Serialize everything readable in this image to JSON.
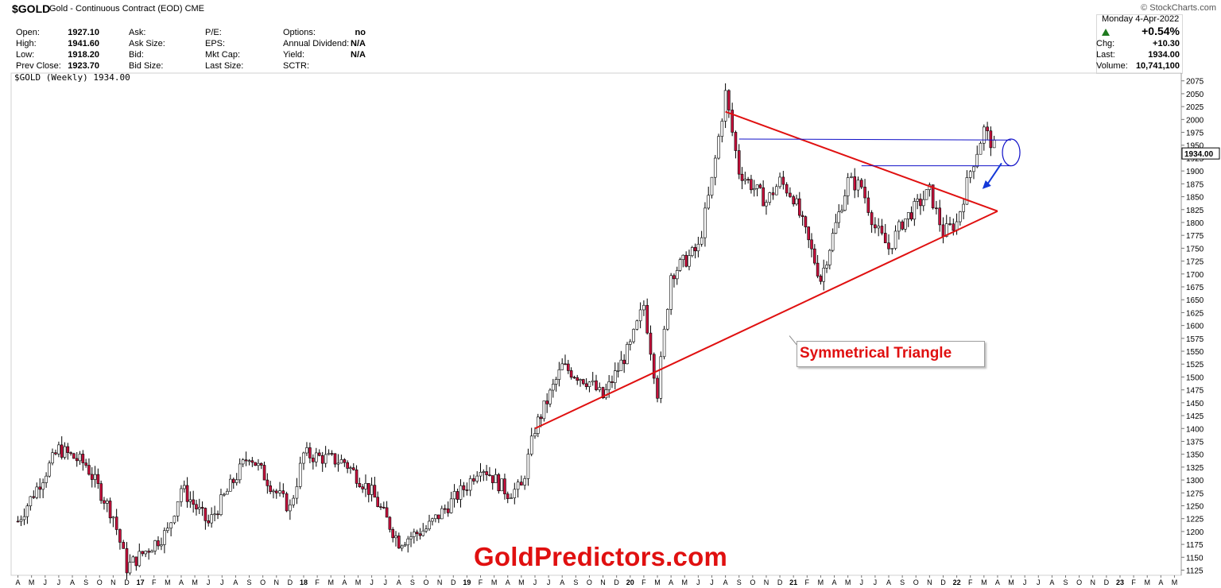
{
  "header": {
    "symbol": "$GOLD",
    "name": "Gold - Continuous Contract (EOD)",
    "exchange": "CME",
    "brand": "© StockCharts.com"
  },
  "quote_left": [
    {
      "label": "Open:",
      "value": "1927.10"
    },
    {
      "label": "High:",
      "value": "1941.60"
    },
    {
      "label": "Low:",
      "value": "1918.20"
    },
    {
      "label": "Prev Close:",
      "value": "1923.70"
    }
  ],
  "quote_mid1": [
    "Ask:",
    "Ask Size:",
    "Bid:",
    "Bid Size:"
  ],
  "quote_mid2": [
    "P/E:",
    "EPS:",
    "Mkt Cap:",
    "Last Size:"
  ],
  "quote_mid3": [
    {
      "label": "Options:",
      "value": "no"
    },
    {
      "label": "Annual Dividend:",
      "value": "N/A"
    },
    {
      "label": "Yield:",
      "value": "N/A"
    },
    {
      "label": "SCTR:",
      "value": ""
    }
  ],
  "right_panel": {
    "date": "Monday   4-Apr-2022",
    "pct": "+0.54%",
    "rows": [
      {
        "label": "Chg:",
        "value": "+10.30"
      },
      {
        "label": "Last:",
        "value": "1934.00"
      },
      {
        "label": "Volume:",
        "value": "10,741,100"
      }
    ]
  },
  "series_label": "$GOLD (Weekly) 1934.00",
  "last_price_tag": "1934.00",
  "callout": "Symmetrical Triangle",
  "watermark": "GoldPredictors.com",
  "colors": {
    "up": "#ffffff",
    "down": "#c8103c",
    "trend": "#e01010",
    "resistance": "#1010c8",
    "arrow": "#1438d8"
  },
  "chart_data": {
    "type": "candlestick",
    "title": "$GOLD (Weekly) 1934.00",
    "ylim": [
      1115,
      2090
    ],
    "y_ticks": [
      1125,
      1150,
      1175,
      1200,
      1225,
      1250,
      1275,
      1300,
      1325,
      1350,
      1375,
      1400,
      1425,
      1450,
      1475,
      1500,
      1525,
      1550,
      1575,
      1600,
      1625,
      1650,
      1675,
      1700,
      1725,
      1750,
      1775,
      1800,
      1825,
      1850,
      1875,
      1900,
      1925,
      1950,
      1975,
      2000,
      2025,
      2050,
      2075
    ],
    "x_labels": [
      "A",
      "M",
      "J",
      "J",
      "A",
      "S",
      "O",
      "N",
      "D",
      "17",
      "F",
      "M",
      "A",
      "M",
      "J",
      "J",
      "A",
      "S",
      "O",
      "N",
      "D",
      "18",
      "F",
      "M",
      "A",
      "M",
      "J",
      "J",
      "A",
      "S",
      "O",
      "N",
      "D",
      "19",
      "F",
      "M",
      "A",
      "M",
      "J",
      "J",
      "A",
      "S",
      "O",
      "N",
      "D",
      "20",
      "F",
      "M",
      "A",
      "M",
      "J",
      "J",
      "A",
      "S",
      "O",
      "N",
      "D",
      "21",
      "F",
      "M",
      "A",
      "M",
      "J",
      "J",
      "A",
      "S",
      "O",
      "N",
      "D",
      "22",
      "F",
      "M",
      "A",
      "M",
      "J",
      "J",
      "A",
      "S",
      "O",
      "N",
      "D",
      "23",
      "F",
      "M",
      "A",
      "M"
    ],
    "price_path": [
      [
        "2016-04",
        1220
      ],
      [
        "2016-07",
        1360
      ],
      [
        "2016-09",
        1330
      ],
      [
        "2016-11",
        1230
      ],
      [
        "2016-12",
        1130
      ],
      [
        "2017-03",
        1200
      ],
      [
        "2017-04",
        1285
      ],
      [
        "2017-06",
        1215
      ],
      [
        "2017-09",
        1350
      ],
      [
        "2017-11",
        1275
      ],
      [
        "2017-12",
        1245
      ],
      [
        "2018-01",
        1350
      ],
      [
        "2018-04",
        1335
      ],
      [
        "2018-06",
        1275
      ],
      [
        "2018-08",
        1180
      ],
      [
        "2018-10",
        1205
      ],
      [
        "2019-01",
        1290
      ],
      [
        "2019-02",
        1330
      ],
      [
        "2019-04",
        1275
      ],
      [
        "2019-05",
        1285
      ],
      [
        "2019-06",
        1400
      ],
      [
        "2019-08",
        1520
      ],
      [
        "2019-10",
        1490
      ],
      [
        "2019-11",
        1460
      ],
      [
        "2020-01",
        1560
      ],
      [
        "2020-02",
        1640
      ],
      [
        "2020-03",
        1470
      ],
      [
        "2020-04",
        1700
      ],
      [
        "2020-06",
        1750
      ],
      [
        "2020-07",
        1880
      ],
      [
        "2020-08",
        2050
      ],
      [
        "2020-09",
        1900
      ],
      [
        "2020-11",
        1840
      ],
      [
        "2020-12",
        1880
      ],
      [
        "2021-01",
        1850
      ],
      [
        "2021-03",
        1690
      ],
      [
        "2021-05",
        1880
      ],
      [
        "2021-06",
        1870
      ],
      [
        "2021-07",
        1790
      ],
      [
        "2021-08",
        1750
      ],
      [
        "2021-09",
        1800
      ],
      [
        "2021-11",
        1860
      ],
      [
        "2021-12",
        1780
      ],
      [
        "2022-01",
        1800
      ],
      [
        "2022-02",
        1900
      ],
      [
        "2022-03",
        1980
      ],
      [
        "2022-04",
        1934
      ]
    ],
    "trendlines": [
      {
        "name": "triangle-upper",
        "from": [
          "2020-08",
          2015
        ],
        "to": [
          "2022-04",
          1822
        ]
      },
      {
        "name": "triangle-lower",
        "from": [
          "2019-06",
          1400
        ],
        "to": [
          "2022-04",
          1822
        ]
      },
      {
        "name": "resistance-upper",
        "from": [
          "2020-09",
          1962
        ],
        "to": [
          "2022-05",
          1960
        ]
      },
      {
        "name": "resistance-lower",
        "from": [
          "2021-06",
          1910
        ],
        "to": [
          "2022-05",
          1910
        ]
      }
    ],
    "last_price": 1934.0
  }
}
